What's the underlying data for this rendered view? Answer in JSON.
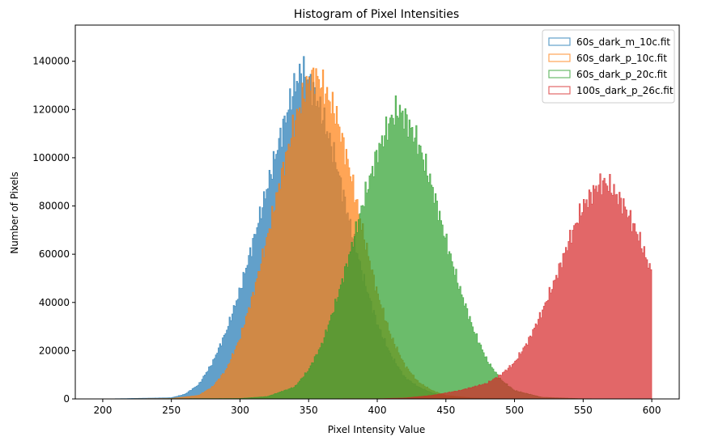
{
  "chart_data": {
    "type": "histogram",
    "title": "Histogram of Pixel Intensities",
    "xlabel": "Pixel Intensity Value",
    "ylabel": "Number of Pixels",
    "xlim": [
      180,
      620
    ],
    "ylim": [
      0,
      155000
    ],
    "xticks": [
      200,
      250,
      300,
      350,
      400,
      450,
      500,
      550,
      600
    ],
    "yticks": [
      0,
      20000,
      40000,
      60000,
      80000,
      100000,
      120000,
      140000
    ],
    "bin_width": 1,
    "grid": false,
    "legend_position": "top-right",
    "series": [
      {
        "name": "60s_dark_m_10c.fit",
        "color": "#1f77b4",
        "alpha": 0.7,
        "x": [
          200,
          250,
          260,
          270,
          280,
          290,
          300,
          310,
          320,
          330,
          340,
          345,
          350,
          360,
          370,
          380,
          390,
          400,
          410,
          420,
          430,
          440,
          450,
          470,
          500,
          600
        ],
        "y": [
          0,
          500,
          2000,
          6000,
          15000,
          28000,
          45000,
          66000,
          88000,
          110000,
          130000,
          136000,
          133000,
          118000,
          98000,
          73000,
          50000,
          31000,
          18000,
          9000,
          5000,
          2500,
          1200,
          300,
          50,
          0
        ]
      },
      {
        "name": "60s_dark_p_10c.fit",
        "color": "#ff7f0e",
        "alpha": 0.7,
        "x": [
          200,
          250,
          270,
          280,
          290,
          300,
          310,
          320,
          330,
          340,
          350,
          355,
          360,
          370,
          380,
          390,
          400,
          410,
          420,
          430,
          440,
          450,
          470,
          500,
          600
        ],
        "y": [
          0,
          200,
          1500,
          5000,
          12000,
          25000,
          44000,
          67000,
          92000,
          115000,
          132000,
          134000,
          130000,
          118000,
          95000,
          68000,
          44000,
          26000,
          14000,
          7000,
          3500,
          1500,
          400,
          100,
          0
        ]
      },
      {
        "name": "60s_dark_p_20c.fit",
        "color": "#2ca02c",
        "alpha": 0.7,
        "x": [
          200,
          300,
          320,
          340,
          350,
          360,
          370,
          380,
          390,
          400,
          410,
          415,
          420,
          430,
          440,
          450,
          460,
          470,
          480,
          490,
          500,
          520,
          550,
          600
        ],
        "y": [
          0,
          200,
          1000,
          5000,
          12000,
          23000,
          40000,
          60000,
          82000,
          102000,
          116000,
          120000,
          117000,
          106000,
          88000,
          66000,
          46000,
          29000,
          16000,
          8000,
          3500,
          700,
          100,
          0
        ]
      },
      {
        "name": "100s_dark_p_26c.fit",
        "color": "#d62728",
        "alpha": 0.7,
        "x": [
          200,
          400,
          420,
          440,
          460,
          480,
          490,
          500,
          510,
          520,
          530,
          540,
          550,
          560,
          565,
          570,
          580,
          590,
          600
        ],
        "y": [
          0,
          100,
          400,
          1500,
          3500,
          6500,
          10000,
          15000,
          24000,
          36000,
          50000,
          66000,
          80000,
          88000,
          90000,
          88000,
          80000,
          68000,
          52000
        ]
      }
    ]
  }
}
